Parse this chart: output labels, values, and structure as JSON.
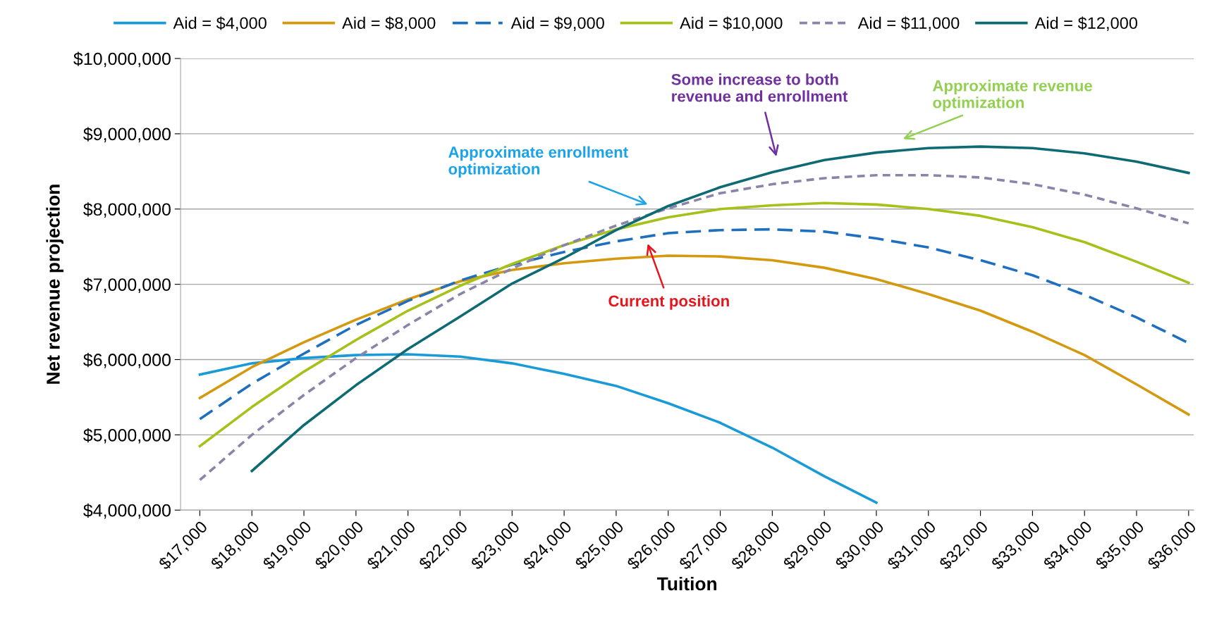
{
  "chart_data": {
    "type": "line",
    "xlabel": "Tuition",
    "ylabel": "Net revenue projection",
    "categories": [
      "$17,000",
      "$18,000",
      "$19,000",
      "$20,000",
      "$21,000",
      "$22,000",
      "$23,000",
      "$24,000",
      "$25,000",
      "$26,000",
      "$27,000",
      "$28,000",
      "$29,000",
      "$30,000",
      "$31,000",
      "$32,000",
      "$33,000",
      "$34,000",
      "$35,000",
      "$36,000"
    ],
    "series": [
      {
        "name": "Aid = $4,000",
        "color": "#1a9bd7",
        "line_style": "solid",
        "values": [
          5800000,
          5950000,
          6020000,
          6060000,
          6070000,
          6040000,
          5950000,
          5810000,
          5650000,
          5420000,
          5160000,
          4830000,
          4450000,
          4100000,
          null,
          null,
          null,
          null,
          null,
          null
        ]
      },
      {
        "name": "Aid = $8,000",
        "color": "#d4990f",
        "line_style": "solid",
        "values": [
          5490000,
          5900000,
          6230000,
          6530000,
          6800000,
          7040000,
          7190000,
          7280000,
          7340000,
          7380000,
          7370000,
          7320000,
          7220000,
          7070000,
          6870000,
          6650000,
          6370000,
          6060000,
          5670000,
          5270000
        ]
      },
      {
        "name": "Aid = $9,000",
        "color": "#1f6fbf",
        "line_style": "dashed",
        "values": [
          5210000,
          5680000,
          6080000,
          6460000,
          6780000,
          7050000,
          7260000,
          7430000,
          7570000,
          7680000,
          7720000,
          7730000,
          7700000,
          7610000,
          7490000,
          7320000,
          7120000,
          6860000,
          6560000,
          6220000
        ]
      },
      {
        "name": "Aid = $10,000",
        "color": "#a8c01a",
        "line_style": "solid",
        "values": [
          4850000,
          5370000,
          5840000,
          6260000,
          6650000,
          6980000,
          7270000,
          7520000,
          7730000,
          7890000,
          8000000,
          8050000,
          8080000,
          8060000,
          8000000,
          7910000,
          7760000,
          7560000,
          7300000,
          7020000
        ]
      },
      {
        "name": "Aid = $11,000",
        "color": "#8a85a8",
        "line_style": "dotted",
        "values": [
          4400000,
          5000000,
          5530000,
          6020000,
          6460000,
          6870000,
          7210000,
          7520000,
          7780000,
          8010000,
          8210000,
          8330000,
          8410000,
          8450000,
          8450000,
          8420000,
          8330000,
          8190000,
          8010000,
          7810000
        ]
      },
      {
        "name": "Aid = $12,000",
        "color": "#0e6b73",
        "line_style": "solid",
        "values": [
          null,
          4520000,
          5130000,
          5660000,
          6140000,
          6570000,
          7010000,
          7350000,
          7720000,
          8040000,
          8290000,
          8490000,
          8650000,
          8750000,
          8810000,
          8830000,
          8810000,
          8740000,
          8630000,
          8480000
        ]
      }
    ],
    "ylim": [
      4000000,
      10000000
    ],
    "yticks": [
      {
        "value": 4000000,
        "label": "$4,000,000"
      },
      {
        "value": 5000000,
        "label": "$5,000,000"
      },
      {
        "value": 6000000,
        "label": "$6,000,000"
      },
      {
        "value": 7000000,
        "label": "$7,000,000"
      },
      {
        "value": 8000000,
        "label": "$8,000,000"
      },
      {
        "value": 9000000,
        "label": "$9,000,000"
      },
      {
        "value": 10000000,
        "label": "$10,000,000"
      }
    ],
    "grid": "y",
    "legend": "top",
    "marker": "none",
    "annotations": [
      "Approximate enrollment\noptimization",
      "Current position",
      "Some increase to both\nrevenue and enrollment",
      "Approximate revenue\noptimization"
    ]
  }
}
